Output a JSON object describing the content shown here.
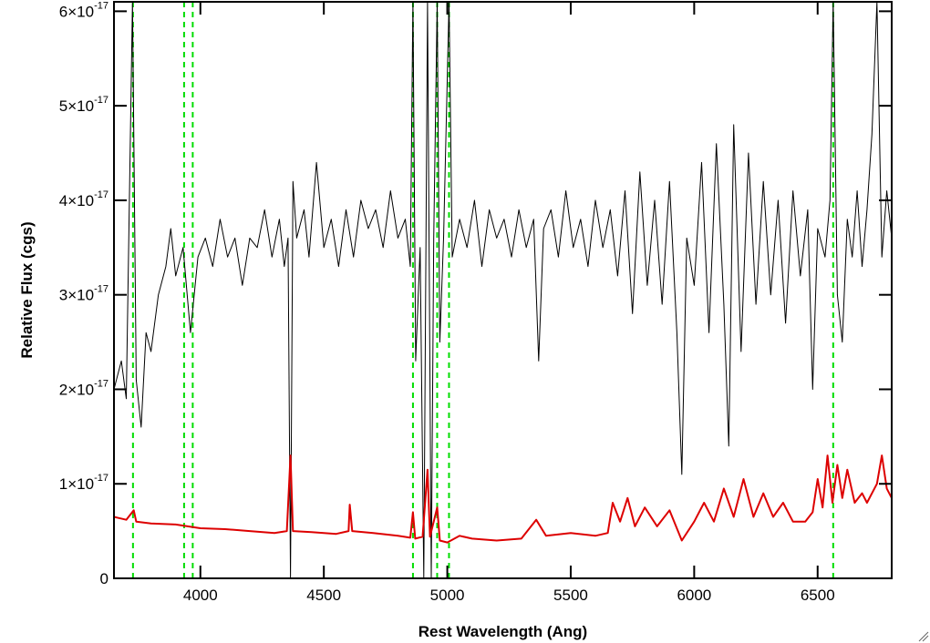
{
  "chart_data": {
    "type": "line",
    "xlabel": "Rest Wavelength (Ang)",
    "ylabel": "Relative Flux (cgs)",
    "xlim": [
      3650,
      6800
    ],
    "ylim": [
      0,
      6.1e-17
    ],
    "x_ticks": [
      4000,
      4500,
      5000,
      5500,
      6000,
      6500
    ],
    "x_tick_labels": [
      "4000",
      "4500",
      "5000",
      "5500",
      "6000",
      "6500"
    ],
    "y_ticks": [
      0,
      1e-17,
      2e-17,
      3e-17,
      4e-17,
      5e-17,
      6e-17
    ],
    "y_tick_labels": [
      {
        "mantissa": "0",
        "exponent": ""
      },
      {
        "mantissa": "1×10",
        "exponent": "-17"
      },
      {
        "mantissa": "2×10",
        "exponent": "-17"
      },
      {
        "mantissa": "3×10",
        "exponent": "-17"
      },
      {
        "mantissa": "4×10",
        "exponent": "-17"
      },
      {
        "mantissa": "5×10",
        "exponent": "-17"
      },
      {
        "mantissa": "6×10",
        "exponent": "-17"
      }
    ],
    "reference_lines": {
      "color": "#00dd00",
      "style": "dashed",
      "x": [
        3727,
        3934,
        3969,
        4861,
        4959,
        5007,
        6563
      ]
    },
    "series": [
      {
        "color": "#000000",
        "points": [
          [
            3650,
            2e-17
          ],
          [
            3680,
            2.3e-17
          ],
          [
            3700,
            1.9e-17
          ],
          [
            3725,
            6.1e-17
          ],
          [
            3740,
            2.1e-17
          ],
          [
            3760,
            1.6e-17
          ],
          [
            3780,
            2.6e-17
          ],
          [
            3800,
            2.4e-17
          ],
          [
            3830,
            3e-17
          ],
          [
            3860,
            3.3e-17
          ],
          [
            3880,
            3.7e-17
          ],
          [
            3900,
            3.2e-17
          ],
          [
            3930,
            3.5e-17
          ],
          [
            3960,
            2.6e-17
          ],
          [
            3990,
            3.4e-17
          ],
          [
            4020,
            3.6e-17
          ],
          [
            4050,
            3.3e-17
          ],
          [
            4080,
            3.8e-17
          ],
          [
            4110,
            3.4e-17
          ],
          [
            4140,
            3.6e-17
          ],
          [
            4170,
            3.1e-17
          ],
          [
            4200,
            3.6e-17
          ],
          [
            4230,
            3.5e-17
          ],
          [
            4260,
            3.9e-17
          ],
          [
            4290,
            3.4e-17
          ],
          [
            4320,
            3.8e-17
          ],
          [
            4340,
            3.3e-17
          ],
          [
            4355,
            3.6e-17
          ],
          [
            4365,
            0.0
          ],
          [
            4375,
            4.2e-17
          ],
          [
            4390,
            3.6e-17
          ],
          [
            4420,
            3.9e-17
          ],
          [
            4440,
            3.4e-17
          ],
          [
            4470,
            4.4e-17
          ],
          [
            4500,
            3.5e-17
          ],
          [
            4530,
            3.8e-17
          ],
          [
            4560,
            3.3e-17
          ],
          [
            4590,
            3.9e-17
          ],
          [
            4620,
            3.4e-17
          ],
          [
            4650,
            4e-17
          ],
          [
            4680,
            3.7e-17
          ],
          [
            4710,
            3.9e-17
          ],
          [
            4740,
            3.5e-17
          ],
          [
            4770,
            4.1e-17
          ],
          [
            4800,
            3.6e-17
          ],
          [
            4830,
            3.8e-17
          ],
          [
            4850,
            3.3e-17
          ],
          [
            4861,
            6.1e-17
          ],
          [
            4872,
            2.3e-17
          ],
          [
            4890,
            3.5e-17
          ],
          [
            4905,
            0.0
          ],
          [
            4920,
            6.1e-17
          ],
          [
            4935,
            0.0
          ],
          [
            4945,
            3.6e-17
          ],
          [
            4959,
            6.1e-17
          ],
          [
            4970,
            2.5e-17
          ],
          [
            4985,
            3.6e-17
          ],
          [
            5007,
            6.1e-17
          ],
          [
            5020,
            3.4e-17
          ],
          [
            5050,
            3.8e-17
          ],
          [
            5080,
            3.5e-17
          ],
          [
            5110,
            4e-17
          ],
          [
            5140,
            3.3e-17
          ],
          [
            5170,
            3.9e-17
          ],
          [
            5200,
            3.6e-17
          ],
          [
            5230,
            3.8e-17
          ],
          [
            5260,
            3.4e-17
          ],
          [
            5290,
            3.9e-17
          ],
          [
            5320,
            3.5e-17
          ],
          [
            5350,
            3.8e-17
          ],
          [
            5370,
            2.3e-17
          ],
          [
            5390,
            3.7e-17
          ],
          [
            5420,
            3.9e-17
          ],
          [
            5450,
            3.4e-17
          ],
          [
            5480,
            4.1e-17
          ],
          [
            5510,
            3.5e-17
          ],
          [
            5540,
            3.8e-17
          ],
          [
            5570,
            3.3e-17
          ],
          [
            5600,
            4e-17
          ],
          [
            5630,
            3.5e-17
          ],
          [
            5660,
            3.9e-17
          ],
          [
            5690,
            3.2e-17
          ],
          [
            5720,
            4.1e-17
          ],
          [
            5750,
            2.8e-17
          ],
          [
            5780,
            4.3e-17
          ],
          [
            5810,
            3.1e-17
          ],
          [
            5840,
            4e-17
          ],
          [
            5870,
            2.9e-17
          ],
          [
            5900,
            4.2e-17
          ],
          [
            5930,
            2.6e-17
          ],
          [
            5950,
            1.1e-17
          ],
          [
            5970,
            3.6e-17
          ],
          [
            6000,
            3.1e-17
          ],
          [
            6030,
            4.4e-17
          ],
          [
            6060,
            2.6e-17
          ],
          [
            6090,
            4.6e-17
          ],
          [
            6120,
            2.9e-17
          ],
          [
            6140,
            1.4e-17
          ],
          [
            6160,
            4.8e-17
          ],
          [
            6190,
            2.4e-17
          ],
          [
            6220,
            4.5e-17
          ],
          [
            6250,
            2.9e-17
          ],
          [
            6280,
            4.2e-17
          ],
          [
            6310,
            3e-17
          ],
          [
            6340,
            4e-17
          ],
          [
            6370,
            2.7e-17
          ],
          [
            6400,
            4.1e-17
          ],
          [
            6430,
            3.2e-17
          ],
          [
            6460,
            3.9e-17
          ],
          [
            6480,
            2e-17
          ],
          [
            6500,
            3.7e-17
          ],
          [
            6530,
            3.4e-17
          ],
          [
            6550,
            4e-17
          ],
          [
            6563,
            6.1e-17
          ],
          [
            6580,
            3e-17
          ],
          [
            6600,
            2.5e-17
          ],
          [
            6620,
            3.8e-17
          ],
          [
            6640,
            3.4e-17
          ],
          [
            6660,
            4.1e-17
          ],
          [
            6680,
            3.3e-17
          ],
          [
            6700,
            3.9e-17
          ],
          [
            6720,
            4.7e-17
          ],
          [
            6740,
            6.1e-17
          ],
          [
            6760,
            3.4e-17
          ],
          [
            6780,
            4.1e-17
          ],
          [
            6800,
            3.6e-17
          ]
        ]
      },
      {
        "color": "#dd0000",
        "points": [
          [
            3650,
            6.5e-18
          ],
          [
            3700,
            6.2e-18
          ],
          [
            3730,
            7.2e-18
          ],
          [
            3740,
            6e-18
          ],
          [
            3800,
            5.8e-18
          ],
          [
            3900,
            5.7e-18
          ],
          [
            4000,
            5.3e-18
          ],
          [
            4100,
            5.2e-18
          ],
          [
            4200,
            5e-18
          ],
          [
            4300,
            4.8e-18
          ],
          [
            4350,
            5e-18
          ],
          [
            4365,
            1.3e-17
          ],
          [
            4375,
            5e-18
          ],
          [
            4450,
            4.9e-18
          ],
          [
            4550,
            4.7e-18
          ],
          [
            4600,
            5e-18
          ],
          [
            4605,
            7.8e-18
          ],
          [
            4615,
            5e-18
          ],
          [
            4700,
            4.8e-18
          ],
          [
            4800,
            4.5e-18
          ],
          [
            4850,
            4.3e-18
          ],
          [
            4861,
            7e-18
          ],
          [
            4870,
            4.2e-18
          ],
          [
            4900,
            4.4e-18
          ],
          [
            4920,
            1.15e-17
          ],
          [
            4930,
            4.4e-18
          ],
          [
            4959,
            7.5e-18
          ],
          [
            4970,
            4e-18
          ],
          [
            5000,
            3.8e-18
          ],
          [
            5050,
            4.5e-18
          ],
          [
            5100,
            4.2e-18
          ],
          [
            5200,
            4e-18
          ],
          [
            5300,
            4.2e-18
          ],
          [
            5360,
            6.2e-18
          ],
          [
            5400,
            4.5e-18
          ],
          [
            5500,
            4.8e-18
          ],
          [
            5600,
            4.5e-18
          ],
          [
            5650,
            4.8e-18
          ],
          [
            5670,
            8e-18
          ],
          [
            5700,
            6e-18
          ],
          [
            5730,
            8.5e-18
          ],
          [
            5760,
            5.5e-18
          ],
          [
            5800,
            7.5e-18
          ],
          [
            5850,
            5.5e-18
          ],
          [
            5900,
            7.2e-18
          ],
          [
            5950,
            4e-18
          ],
          [
            6000,
            6e-18
          ],
          [
            6040,
            8e-18
          ],
          [
            6080,
            6e-18
          ],
          [
            6120,
            9.5e-18
          ],
          [
            6160,
            6.5e-18
          ],
          [
            6200,
            1.05e-17
          ],
          [
            6240,
            6.5e-18
          ],
          [
            6280,
            9e-18
          ],
          [
            6320,
            6.5e-18
          ],
          [
            6360,
            8e-18
          ],
          [
            6400,
            6e-18
          ],
          [
            6450,
            6e-18
          ],
          [
            6480,
            7e-18
          ],
          [
            6500,
            1.05e-17
          ],
          [
            6520,
            7.5e-18
          ],
          [
            6540,
            1.3e-17
          ],
          [
            6560,
            8e-18
          ],
          [
            6580,
            1.2e-17
          ],
          [
            6600,
            8.5e-18
          ],
          [
            6620,
            1.15e-17
          ],
          [
            6650,
            8e-18
          ],
          [
            6680,
            9e-18
          ],
          [
            6700,
            8e-18
          ],
          [
            6740,
            1e-17
          ],
          [
            6760,
            1.3e-17
          ],
          [
            6780,
            9.5e-18
          ],
          [
            6800,
            8.5e-18
          ]
        ]
      }
    ]
  }
}
